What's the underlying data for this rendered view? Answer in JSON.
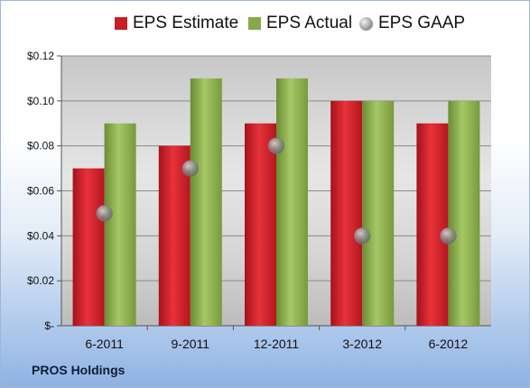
{
  "chart_data": {
    "type": "bar",
    "categories": [
      "6-2011",
      "9-2011",
      "12-2011",
      "3-2012",
      "6-2012"
    ],
    "series": [
      {
        "name": "EPS Estimate",
        "kind": "bar",
        "color": "#d6202a",
        "values": [
          0.07,
          0.08,
          0.09,
          0.1,
          0.09
        ]
      },
      {
        "name": "EPS Actual",
        "kind": "bar",
        "color": "#8fb350",
        "values": [
          0.09,
          0.11,
          0.11,
          0.1,
          0.1
        ]
      },
      {
        "name": "EPS GAAP",
        "kind": "scatter",
        "color": "#a6a6a6",
        "values": [
          0.05,
          0.07,
          0.08,
          0.04,
          0.04
        ]
      }
    ],
    "ylim": [
      0,
      0.12
    ],
    "yticks": [
      0,
      0.02,
      0.04,
      0.06,
      0.08,
      0.1,
      0.12
    ],
    "ytick_labels": [
      "$-",
      "$0.02",
      "$0.04",
      "$0.06",
      "$0.08",
      "$0.10",
      "$0.12"
    ],
    "grid": true,
    "legend_position": "top"
  },
  "footer": {
    "company": "PROS Holdings"
  }
}
